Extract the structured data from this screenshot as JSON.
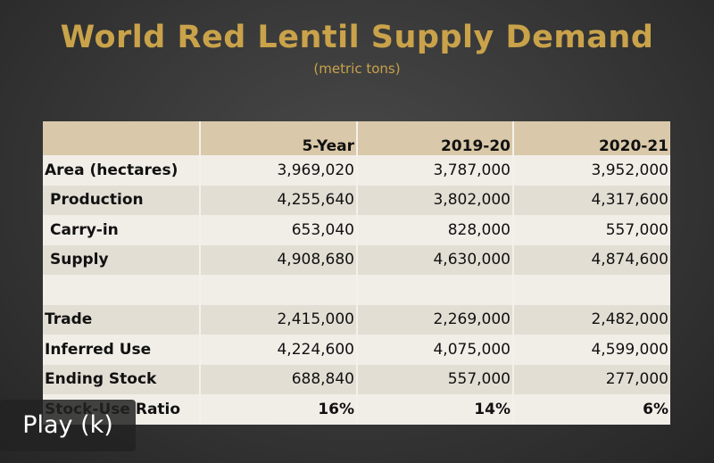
{
  "slide": {
    "title": "World Red Lentil Supply Demand",
    "subtitle": "(metric tons)"
  },
  "table": {
    "headers": [
      "",
      "5-Year",
      "2019-20",
      "2020-21"
    ],
    "rows": [
      {
        "label": "Area (hectares)",
        "values": [
          "3,969,020",
          "3,787,000",
          "3,952,000"
        ]
      },
      {
        "label": "Production",
        "values": [
          "4,255,640",
          "3,802,000",
          "4,317,600"
        ]
      },
      {
        "label": "Carry-in",
        "values": [
          "653,040",
          "828,000",
          "557,000"
        ]
      },
      {
        "label": "Supply",
        "values": [
          "4,908,680",
          "4,630,000",
          "4,874,600"
        ]
      },
      {
        "label": "",
        "values": [
          "",
          "",
          ""
        ]
      },
      {
        "label": "Trade",
        "values": [
          "2,415,000",
          "2,269,000",
          "2,482,000"
        ]
      },
      {
        "label": "Inferred Use",
        "values": [
          "4,224,600",
          "4,075,000",
          "4,599,000"
        ]
      },
      {
        "label": "Ending Stock",
        "values": [
          "688,840",
          "557,000",
          "277,000"
        ]
      },
      {
        "label": "Stock-Use Ratio",
        "values": [
          "16%",
          "14%",
          "6%"
        ]
      }
    ]
  },
  "player": {
    "play_label": "Play (k)"
  },
  "colors": {
    "title_gold": "#c9a24a",
    "header_tan": "#d9c8a9",
    "row_light": "#f1eee8",
    "row_dark": "#e3ded4"
  }
}
